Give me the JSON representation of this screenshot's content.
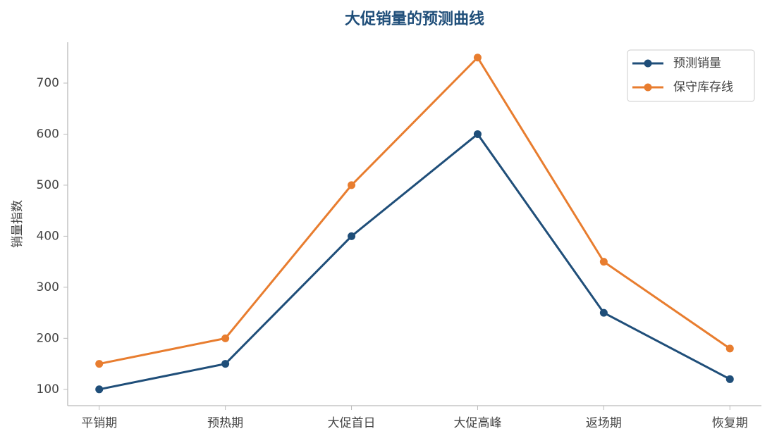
{
  "chart_data": {
    "type": "line",
    "title": "大促销量的预测曲线",
    "ylabel": "销量指数",
    "categories": [
      "平销期",
      "预热期",
      "大促首日",
      "大促高峰",
      "返场期",
      "恢复期"
    ],
    "series": [
      {
        "name": "预测销量",
        "color": "#1f4e79",
        "values": [
          100,
          150,
          400,
          600,
          250,
          120
        ]
      },
      {
        "name": "保守库存线",
        "color": "#e87d2f",
        "values": [
          150,
          200,
          500,
          750,
          350,
          180
        ]
      }
    ],
    "ylim": [
      68,
      780
    ],
    "yticks": [
      100,
      200,
      300,
      400,
      500,
      600,
      700
    ],
    "grid": false,
    "legend": "upper right"
  }
}
